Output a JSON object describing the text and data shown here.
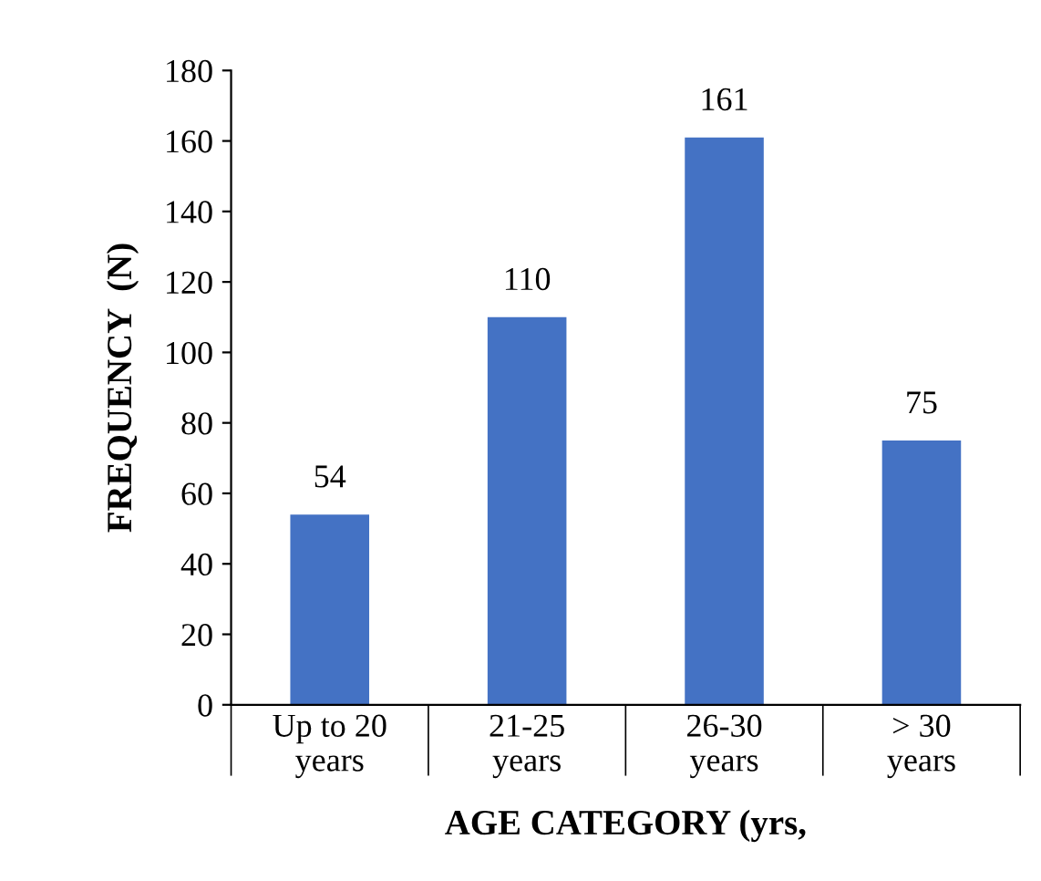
{
  "chart_data": {
    "type": "bar",
    "xlabel": "AGE CATEGORY (yrs,",
    "ylabel": "FREQUENCY  (N)",
    "categories": [
      "Up to 20\nyears",
      "21-25\nyears",
      "26-30\nyears",
      "> 30\nyears"
    ],
    "values": [
      54,
      110,
      161,
      75
    ],
    "color": "#4472c4",
    "ylim": [
      0,
      180
    ],
    "yticks": [
      0,
      20,
      40,
      60,
      80,
      100,
      120,
      140,
      160,
      180
    ],
    "grid": false,
    "data_labels": true
  }
}
